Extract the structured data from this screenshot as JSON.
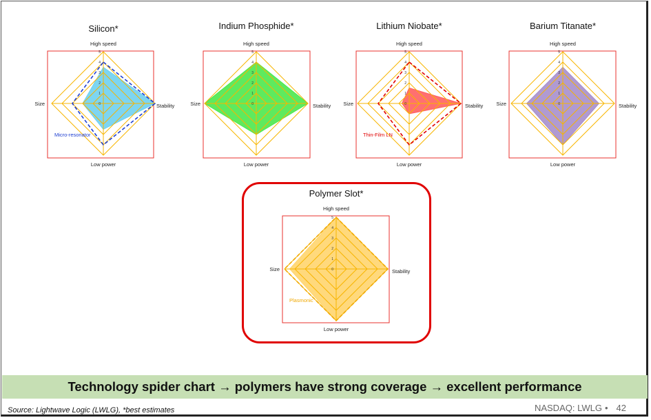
{
  "banner": {
    "text_before": "Technology spider chart",
    "arrow": "→",
    "text_middle": "polymers have strong coverage",
    "text_after": "excellent performance"
  },
  "footer": {
    "source": "Source: Lightwave Logic (LWLG), *best estimates",
    "ticker": "NASDAQ: LWLG",
    "separator": "•",
    "page": "42"
  },
  "colors": {
    "frame": "#e8302d",
    "grid": "#f7b500",
    "banner": "#c6dfb4",
    "highlight": "#e00000"
  },
  "chart_data": [
    {
      "type": "radar",
      "title": "Silicon*",
      "axes": [
        "High speed",
        "Stability",
        "Low power",
        "Size"
      ],
      "r_ticks": [
        "0",
        "1",
        "2",
        "3",
        "4",
        "5"
      ],
      "rlim": [
        0,
        5
      ],
      "series": [
        {
          "values": [
            3.5,
            5,
            2.5,
            2
          ],
          "style": "filled",
          "color": "#6fd0f0"
        },
        {
          "name": "Micro-resonator",
          "values": [
            4,
            5,
            4,
            3
          ],
          "style": "dashed",
          "color": "#1f3fd0"
        }
      ]
    },
    {
      "type": "radar",
      "title": "Indium Phosphide*",
      "axes": [
        "High speed",
        "Stability",
        "Low power",
        "Size"
      ],
      "r_ticks": [
        "0",
        "1",
        "2",
        "3",
        "4",
        "5"
      ],
      "rlim": [
        0,
        5
      ],
      "series": [
        {
          "values": [
            4,
            5,
            3,
            5
          ],
          "style": "filled",
          "color": "#4ce84c"
        }
      ]
    },
    {
      "type": "radar",
      "title": "Lithium Niobate*",
      "axes": [
        "High speed",
        "Stability",
        "Low power",
        "Size"
      ],
      "r_ticks": [
        "0",
        "1",
        "2",
        "3",
        "4",
        "5"
      ],
      "rlim": [
        0,
        5
      ],
      "series": [
        {
          "values": [
            1.5,
            5,
            1,
            0.7
          ],
          "style": "filled",
          "color": "#ff6060"
        },
        {
          "name": "Thin-Film LN",
          "values": [
            4,
            5,
            4,
            3
          ],
          "style": "dashed",
          "color": "#e00000"
        }
      ]
    },
    {
      "type": "radar",
      "title": "Barium Titanate*",
      "axes": [
        "High speed",
        "Stability",
        "Low power",
        "Size"
      ],
      "r_ticks": [
        "0",
        "1",
        "2",
        "3",
        "4",
        "5"
      ],
      "rlim": [
        0,
        5
      ],
      "series": [
        {
          "values": [
            3.5,
            3.5,
            4,
            3.5
          ],
          "style": "filled",
          "color": "#a78fcc"
        }
      ]
    },
    {
      "type": "radar",
      "title": "Polymer Slot*",
      "axes": [
        "High speed",
        "Stability",
        "Low power",
        "Size"
      ],
      "r_ticks": [
        "0",
        "1",
        "2",
        "3",
        "4",
        "5"
      ],
      "rlim": [
        0,
        5
      ],
      "series": [
        {
          "values": [
            5,
            5,
            5,
            4.5
          ],
          "style": "filled",
          "color": "#ffd56e"
        },
        {
          "name": "Plasmonic",
          "values": [
            5,
            5,
            5,
            5
          ],
          "style": "dashed",
          "color": "#f0a800"
        }
      ]
    }
  ]
}
